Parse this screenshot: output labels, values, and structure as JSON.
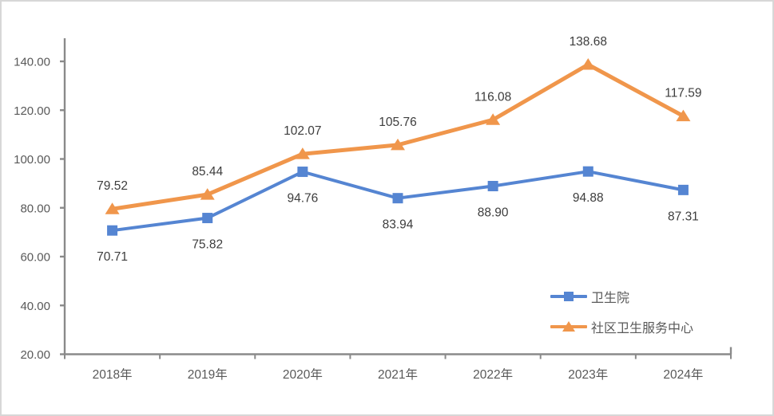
{
  "chart_data": {
    "type": "line",
    "title": "",
    "categories": [
      "2018年",
      "2019年",
      "2020年",
      "2021年",
      "2022年",
      "2023年",
      "2024年"
    ],
    "series": [
      {
        "name": "卫生院",
        "color": "#5585D2",
        "marker": "square",
        "values": [
          70.71,
          75.82,
          94.76,
          83.94,
          88.9,
          94.88,
          87.31
        ],
        "label_position": "below"
      },
      {
        "name": "社区卫生服务中心",
        "color": "#F0964B",
        "marker": "triangle",
        "values": [
          79.52,
          85.44,
          102.07,
          105.76,
          116.08,
          138.68,
          117.59
        ],
        "label_position": "above"
      }
    ],
    "xlabel": "",
    "ylabel": "",
    "ylim": [
      20,
      140
    ],
    "ytick_step": 20,
    "ytick_labels": [
      "20.00",
      "40.00",
      "60.00",
      "80.00",
      "100.00",
      "120.00",
      "140.00"
    ],
    "grid": "off",
    "legend_position": "inside-bottom-right",
    "colors": {
      "axis": "#8A8A8A",
      "tick_label": "#595959",
      "data_label": "#3D3D3D",
      "frame_border": "#D7D7D7",
      "background": "#FFFFFF"
    }
  }
}
